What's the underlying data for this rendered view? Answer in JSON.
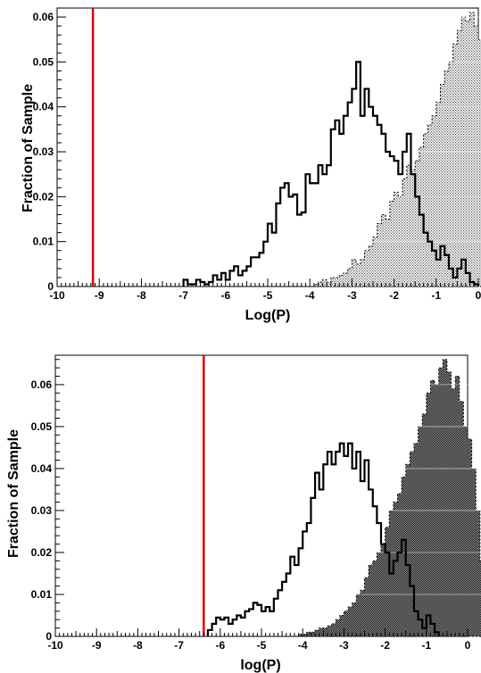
{
  "chart_data": [
    {
      "type": "bar",
      "xlabel": "Log(P)",
      "ylabel": "Fraction of Sample",
      "xlim": [
        -10,
        0
      ],
      "ylim": [
        0,
        0.062
      ],
      "x_ticks": [
        "-10",
        "-9",
        "-8",
        "-7",
        "-6",
        "-5",
        "-4",
        "-3",
        "-2",
        "-1",
        "0"
      ],
      "y_ticks": [
        "0",
        "0.01",
        "0.02",
        "0.03",
        "0.04",
        "0.05",
        "0.06"
      ],
      "bin_width": 0.1,
      "reference_line": {
        "x": -9.15,
        "color": "#dd0000"
      },
      "series": [
        {
          "style": "filled-dotted",
          "x_start": -3.9,
          "values": [
            0.0005,
            0.001,
            0.0015,
            0.001,
            0.002,
            0.002,
            0.0025,
            0.003,
            0.004,
            0.006,
            0.005,
            0.006,
            0.008,
            0.009,
            0.011,
            0.014,
            0.016,
            0.015,
            0.019,
            0.021,
            0.02,
            0.024,
            0.027,
            0.026,
            0.028,
            0.031,
            0.034,
            0.036,
            0.038,
            0.041,
            0.045,
            0.048,
            0.05,
            0.054,
            0.057,
            0.06,
            0.059,
            0.061,
            0.058,
            0.055,
            0.052,
            0.05,
            0.046,
            0.04,
            0.032,
            0.022,
            0.012,
            0.004,
            0.001
          ]
        },
        {
          "style": "outline",
          "x_start": -7.0,
          "values": [
            0.0015,
            0.0005,
            0.0005,
            0.0015,
            0.001,
            0.0005,
            0.001,
            0.0025,
            0.0015,
            0.003,
            0.0015,
            0.0035,
            0.0045,
            0.0025,
            0.0035,
            0.0045,
            0.0065,
            0.0065,
            0.0075,
            0.01,
            0.014,
            0.012,
            0.0185,
            0.022,
            0.023,
            0.02,
            0.0205,
            0.016,
            0.0165,
            0.025,
            0.023,
            0.023,
            0.027,
            0.025,
            0.027,
            0.035,
            0.037,
            0.034,
            0.038,
            0.041,
            0.044,
            0.05,
            0.038,
            0.044,
            0.04,
            0.038,
            0.036,
            0.034,
            0.03,
            0.029,
            0.028,
            0.025,
            0.03,
            0.034,
            0.025,
            0.02,
            0.016,
            0.012,
            0.01,
            0.008,
            0.006,
            0.009,
            0.007,
            0.004,
            0.002,
            0.004,
            0.006,
            0.003,
            0.001,
            0.0005
          ]
        }
      ]
    },
    {
      "type": "bar",
      "xlabel": "log(P)",
      "ylabel": "Fraction of Sample",
      "xlim": [
        -10,
        0
      ],
      "ylim": [
        0,
        0.067
      ],
      "x_ticks": [
        "-10",
        "-9",
        "-8",
        "-7",
        "-6",
        "-5",
        "-4",
        "-3",
        "-2",
        "-1",
        "0"
      ],
      "y_ticks": [
        "0",
        "0.01",
        "0.02",
        "0.03",
        "0.04",
        "0.05",
        "0.06"
      ],
      "bin_width": 0.1,
      "reference_line": {
        "x": -6.4,
        "color": "#dd0000"
      },
      "series": [
        {
          "style": "filled-dense",
          "x_start": -4.1,
          "values": [
            0.0005,
            0.0005,
            0.001,
            0.001,
            0.0015,
            0.002,
            0.002,
            0.0025,
            0.003,
            0.004,
            0.005,
            0.006,
            0.007,
            0.008,
            0.01,
            0.011,
            0.014,
            0.017,
            0.018,
            0.02,
            0.022,
            0.026,
            0.03,
            0.032,
            0.034,
            0.038,
            0.041,
            0.044,
            0.046,
            0.05,
            0.053,
            0.058,
            0.061,
            0.06,
            0.064,
            0.066,
            0.063,
            0.059,
            0.062,
            0.056,
            0.05,
            0.047,
            0.04,
            0.03,
            0.018,
            0.008,
            0.002
          ]
        },
        {
          "style": "outline",
          "x_start": -6.3,
          "values": [
            0.0015,
            0.003,
            0.0045,
            0.004,
            0.0045,
            0.003,
            0.004,
            0.005,
            0.0045,
            0.006,
            0.0065,
            0.008,
            0.0075,
            0.006,
            0.007,
            0.006,
            0.009,
            0.011,
            0.013,
            0.015,
            0.019,
            0.017,
            0.021,
            0.025,
            0.027,
            0.033,
            0.039,
            0.035,
            0.041,
            0.044,
            0.041,
            0.044,
            0.046,
            0.043,
            0.046,
            0.04,
            0.044,
            0.037,
            0.042,
            0.035,
            0.031,
            0.027,
            0.022,
            0.02,
            0.015,
            0.018,
            0.02,
            0.023,
            0.017,
            0.012,
            0.006,
            0.004,
            0.002,
            0.005,
            0.003,
            0.001
          ]
        }
      ]
    }
  ]
}
